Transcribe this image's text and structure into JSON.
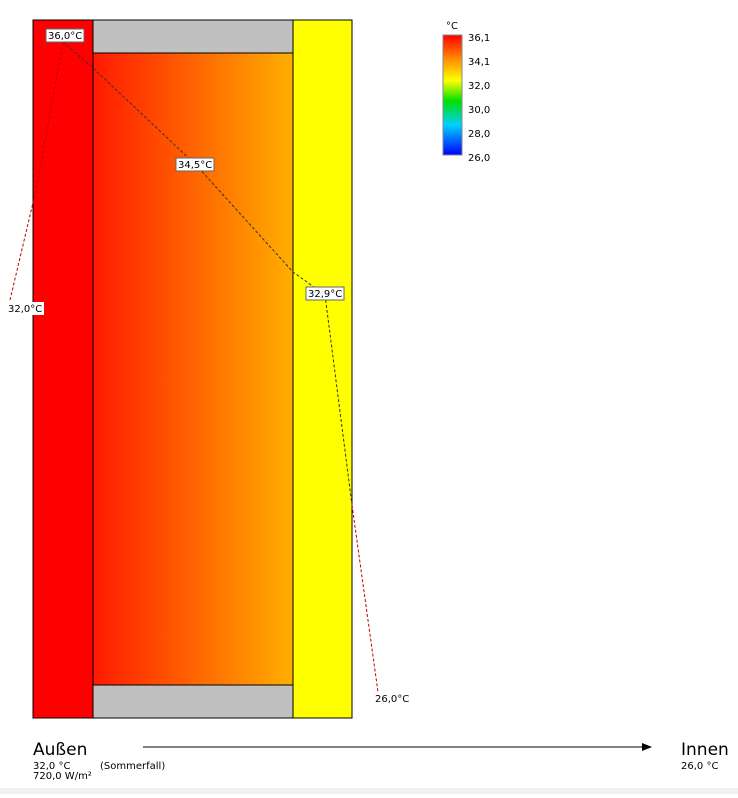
{
  "diagram": {
    "points": [
      {
        "label": "36,0°C"
      },
      {
        "label": "34,5°C"
      },
      {
        "label": "32,9°C"
      },
      {
        "label": "32,0°C"
      },
      {
        "label": "26,0°C"
      }
    ],
    "legend": {
      "unit": "°C",
      "ticks": [
        "36,1",
        "34,1",
        "32,0",
        "30,0",
        "28,0",
        "26,0"
      ]
    },
    "outside": {
      "title": "Außen",
      "temperature": "32,0 °C",
      "radiation": "720,0 W/m²",
      "case": "(Sommerfall)"
    },
    "inside": {
      "title": "Innen",
      "temperature": "26,0 °C"
    }
  }
}
